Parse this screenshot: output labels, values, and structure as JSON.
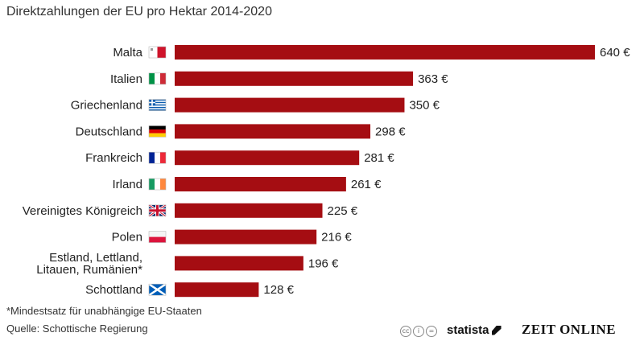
{
  "chart_data": {
    "type": "bar",
    "orientation": "horizontal",
    "title": "Direktzahlungen der EU pro Hektar 2014-2020",
    "categories": [
      "Malta",
      "Italien",
      "Griechenland",
      "Deutschland",
      "Frankreich",
      "Irland",
      "Vereinigtes Königreich",
      "Polen",
      "Estland, Lettland, Litauen, Rumänien*",
      "Schottland"
    ],
    "category_lines": [
      [
        "Malta"
      ],
      [
        "Italien"
      ],
      [
        "Griechenland"
      ],
      [
        "Deutschland"
      ],
      [
        "Frankreich"
      ],
      [
        "Irland"
      ],
      [
        "Vereinigtes Königreich"
      ],
      [
        "Polen"
      ],
      [
        "Estland, Lettland,",
        "Litauen, Rumänien*"
      ],
      [
        "Schottland"
      ]
    ],
    "flags": [
      "malta",
      "italy",
      "greece",
      "germany",
      "france",
      "ireland",
      "uk",
      "poland",
      "",
      "scotland"
    ],
    "values": [
      640,
      363,
      350,
      298,
      281,
      261,
      225,
      216,
      196,
      128
    ],
    "value_labels": [
      "640 €",
      "363 €",
      "350 €",
      "298 €",
      "281 €",
      "261 €",
      "225 €",
      "216 €",
      "196 €",
      "128 €"
    ],
    "unit": "€",
    "bar_color": "#a50d12",
    "xlim": [
      0,
      640
    ],
    "grid": false,
    "legend": "none"
  },
  "footnote": "*Mindestsatz für unabhängige EU-Staaten",
  "source": "Quelle: Schottische Regierung",
  "branding": {
    "license_icons": [
      "cc-icon",
      "by-icon",
      "nd-icon"
    ],
    "statista": "statista",
    "zeit": "ZEIT ONLINE"
  }
}
